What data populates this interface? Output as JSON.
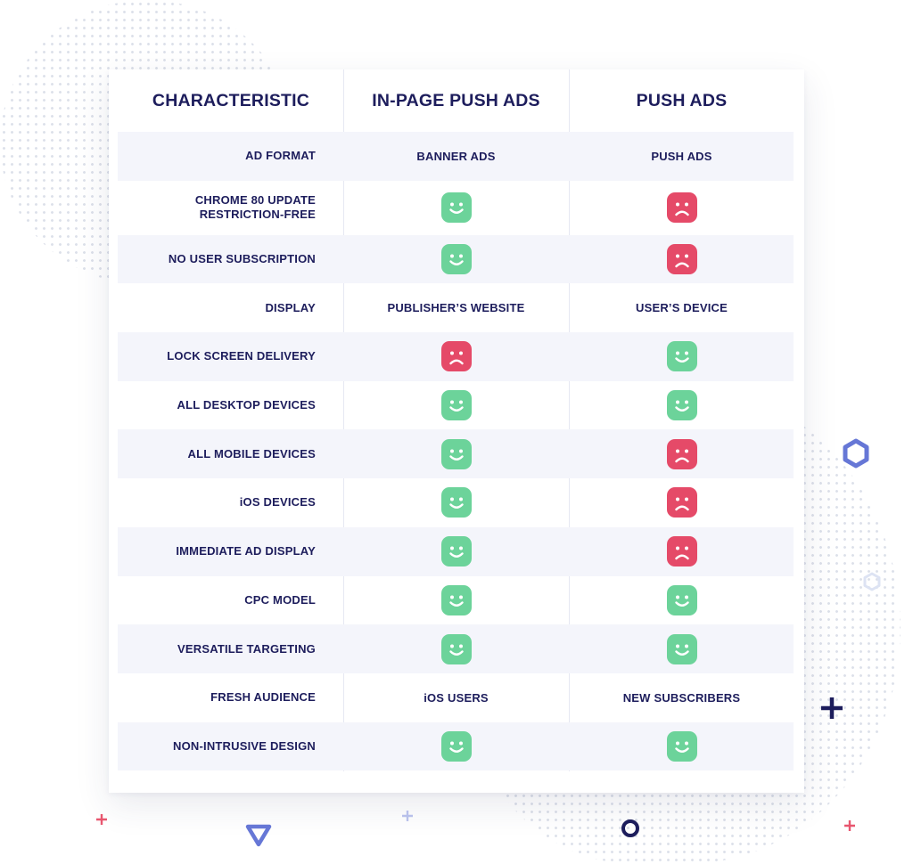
{
  "colors": {
    "text_navy": "#1d1d5c",
    "happy_green": "#6cd39a",
    "sad_red": "#e54a68",
    "row_alt_bg": "#f4f5fb",
    "accent_blue": "#6677d6",
    "accent_pink": "#e8566f"
  },
  "table": {
    "headers": [
      "CHARACTERISTIC",
      "IN-PAGE PUSH ADS",
      "PUSH ADS"
    ],
    "rows": [
      {
        "label": "AD FORMAT",
        "col1": {
          "type": "text",
          "value": "BANNER ADS"
        },
        "col2": {
          "type": "text",
          "value": "PUSH ADS"
        }
      },
      {
        "label": "CHROME 80 UPDATE\nRESTRICTION-FREE",
        "col1": {
          "type": "icon",
          "value": "happy-face-icon"
        },
        "col2": {
          "type": "icon",
          "value": "sad-face-icon"
        }
      },
      {
        "label": "NO USER SUBSCRIPTION",
        "col1": {
          "type": "icon",
          "value": "happy-face-icon"
        },
        "col2": {
          "type": "icon",
          "value": "sad-face-icon"
        }
      },
      {
        "label": "DISPLAY",
        "col1": {
          "type": "text",
          "value": "PUBLISHER’S WEBSITE"
        },
        "col2": {
          "type": "text",
          "value": "USER’S DEVICE"
        }
      },
      {
        "label": "LOCK SCREEN DELIVERY",
        "col1": {
          "type": "icon",
          "value": "sad-face-icon"
        },
        "col2": {
          "type": "icon",
          "value": "happy-face-icon"
        }
      },
      {
        "label": "ALL DESKTOP DEVICES",
        "col1": {
          "type": "icon",
          "value": "happy-face-icon"
        },
        "col2": {
          "type": "icon",
          "value": "happy-face-icon"
        }
      },
      {
        "label": "ALL MOBILE DEVICES",
        "col1": {
          "type": "icon",
          "value": "happy-face-icon"
        },
        "col2": {
          "type": "icon",
          "value": "sad-face-icon"
        }
      },
      {
        "label": "iOS DEVICES",
        "col1": {
          "type": "icon",
          "value": "happy-face-icon"
        },
        "col2": {
          "type": "icon",
          "value": "sad-face-icon"
        }
      },
      {
        "label": "IMMEDIATE AD DISPLAY",
        "col1": {
          "type": "icon",
          "value": "happy-face-icon"
        },
        "col2": {
          "type": "icon",
          "value": "sad-face-icon"
        }
      },
      {
        "label": "CPC MODEL",
        "col1": {
          "type": "icon",
          "value": "happy-face-icon"
        },
        "col2": {
          "type": "icon",
          "value": "happy-face-icon"
        }
      },
      {
        "label": "VERSATILE TARGETING",
        "col1": {
          "type": "icon",
          "value": "happy-face-icon"
        },
        "col2": {
          "type": "icon",
          "value": "happy-face-icon"
        }
      },
      {
        "label": "FRESH AUDIENCE",
        "col1": {
          "type": "text",
          "value": "iOS USERS"
        },
        "col2": {
          "type": "text",
          "value": "NEW SUBSCRIBERS"
        }
      },
      {
        "label": "NON-INTRUSIVE DESIGN",
        "col1": {
          "type": "icon",
          "value": "happy-face-icon"
        },
        "col2": {
          "type": "icon",
          "value": "happy-face-icon"
        }
      }
    ]
  },
  "decorations": [
    "hexagon-outline-icon",
    "hexagon-outline-icon",
    "plus-icon",
    "plus-icon",
    "plus-icon",
    "plus-icon",
    "triangle-down-icon",
    "ring-icon"
  ]
}
